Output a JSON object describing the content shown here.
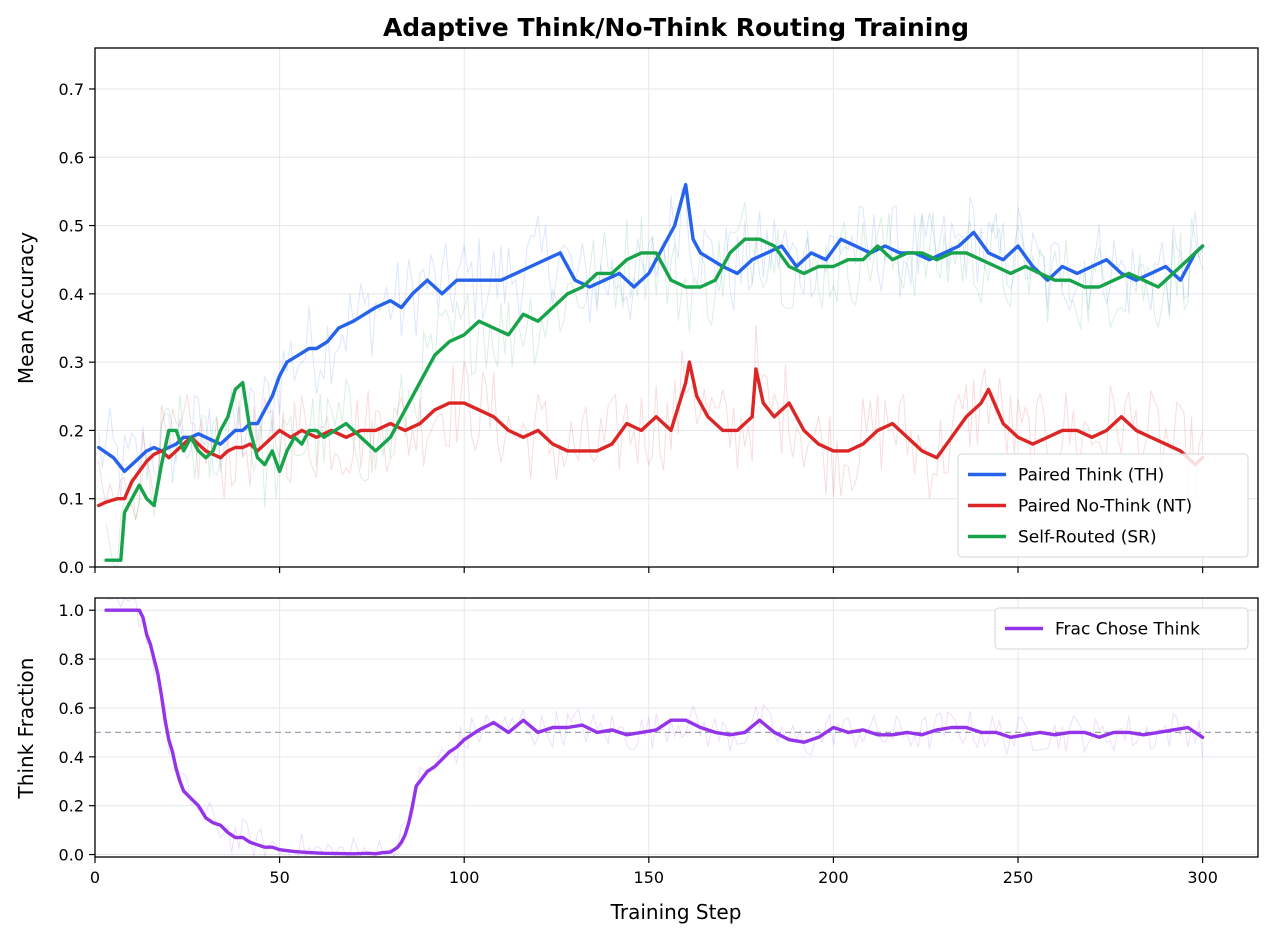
{
  "chart_data": [
    {
      "type": "line",
      "title": "Adaptive Think/No-Think Routing Training",
      "xlabel": "",
      "ylabel": "Mean Accuracy",
      "xlim": [
        0,
        315
      ],
      "ylim": [
        0,
        0.76
      ],
      "xticks": [
        0,
        50,
        100,
        150,
        200,
        250,
        300
      ],
      "yticks": [
        0.0,
        0.1,
        0.2,
        0.3,
        0.4,
        0.5,
        0.6,
        0.7
      ],
      "ytick_labels": [
        "0.0",
        "0.1",
        "0.2",
        "0.3",
        "0.4",
        "0.5",
        "0.6",
        "0.7"
      ],
      "grid": true,
      "legend": "lower-right",
      "series": [
        {
          "name": "Paired Think (TH)",
          "color": "#2563eb",
          "x": [
            1,
            5,
            8,
            10,
            12,
            14,
            16,
            18,
            20,
            22,
            24,
            26,
            28,
            30,
            32,
            34,
            36,
            38,
            40,
            42,
            44,
            46,
            48,
            50,
            52,
            55,
            58,
            60,
            63,
            66,
            70,
            73,
            76,
            80,
            83,
            86,
            88,
            90,
            92,
            94,
            96,
            98,
            100,
            103,
            106,
            110,
            114,
            118,
            122,
            126,
            130,
            134,
            138,
            142,
            146,
            150,
            154,
            157,
            160,
            162,
            164,
            167,
            170,
            174,
            178,
            182,
            186,
            190,
            194,
            198,
            202,
            206,
            210,
            214,
            218,
            222,
            226,
            230,
            234,
            238,
            242,
            246,
            250,
            254,
            258,
            262,
            266,
            270,
            274,
            278,
            282,
            286,
            290,
            294,
            298,
            300
          ],
          "y": [
            0.175,
            0.16,
            0.14,
            0.15,
            0.16,
            0.17,
            0.175,
            0.17,
            0.175,
            0.18,
            0.19,
            0.19,
            0.195,
            0.19,
            0.185,
            0.18,
            0.19,
            0.2,
            0.2,
            0.21,
            0.21,
            0.23,
            0.25,
            0.28,
            0.3,
            0.31,
            0.32,
            0.32,
            0.33,
            0.35,
            0.36,
            0.37,
            0.38,
            0.39,
            0.38,
            0.4,
            0.41,
            0.42,
            0.41,
            0.4,
            0.41,
            0.42,
            0.42,
            0.42,
            0.42,
            0.42,
            0.43,
            0.44,
            0.45,
            0.46,
            0.42,
            0.41,
            0.42,
            0.43,
            0.41,
            0.43,
            0.47,
            0.5,
            0.56,
            0.48,
            0.46,
            0.45,
            0.44,
            0.43,
            0.45,
            0.46,
            0.47,
            0.44,
            0.46,
            0.45,
            0.48,
            0.47,
            0.46,
            0.47,
            0.46,
            0.46,
            0.45,
            0.46,
            0.47,
            0.49,
            0.46,
            0.45,
            0.47,
            0.44,
            0.42,
            0.44,
            0.43,
            0.44,
            0.45,
            0.43,
            0.42,
            0.43,
            0.44,
            0.42,
            0.46,
            0.47
          ]
        },
        {
          "name": "Paired No-Think (NT)",
          "color": "#dc2626",
          "x": [
            1,
            3,
            6,
            8,
            10,
            12,
            14,
            16,
            18,
            20,
            22,
            24,
            26,
            28,
            30,
            32,
            34,
            36,
            38,
            40,
            42,
            44,
            46,
            48,
            50,
            53,
            56,
            60,
            64,
            68,
            72,
            76,
            80,
            84,
            88,
            92,
            96,
            100,
            104,
            108,
            112,
            116,
            120,
            124,
            128,
            132,
            136,
            140,
            144,
            148,
            152,
            156,
            160,
            161,
            163,
            166,
            170,
            174,
            178,
            179,
            181,
            184,
            188,
            192,
            196,
            200,
            204,
            208,
            212,
            216,
            220,
            224,
            228,
            232,
            236,
            240,
            242,
            246,
            250,
            254,
            258,
            262,
            266,
            270,
            274,
            278,
            282,
            286,
            290,
            294,
            298,
            300
          ],
          "y": [
            0.09,
            0.095,
            0.1,
            0.1,
            0.125,
            0.14,
            0.155,
            0.165,
            0.17,
            0.16,
            0.17,
            0.18,
            0.19,
            0.18,
            0.17,
            0.165,
            0.16,
            0.17,
            0.175,
            0.175,
            0.18,
            0.17,
            0.18,
            0.19,
            0.2,
            0.19,
            0.2,
            0.19,
            0.2,
            0.19,
            0.2,
            0.2,
            0.21,
            0.2,
            0.21,
            0.23,
            0.24,
            0.24,
            0.23,
            0.22,
            0.2,
            0.19,
            0.2,
            0.18,
            0.17,
            0.17,
            0.17,
            0.18,
            0.21,
            0.2,
            0.22,
            0.2,
            0.27,
            0.3,
            0.25,
            0.22,
            0.2,
            0.2,
            0.22,
            0.29,
            0.24,
            0.22,
            0.24,
            0.2,
            0.18,
            0.17,
            0.17,
            0.18,
            0.2,
            0.21,
            0.19,
            0.17,
            0.16,
            0.19,
            0.22,
            0.24,
            0.26,
            0.21,
            0.19,
            0.18,
            0.19,
            0.2,
            0.2,
            0.19,
            0.2,
            0.22,
            0.2,
            0.19,
            0.18,
            0.17,
            0.15,
            0.16
          ]
        },
        {
          "name": "Self-Routed (SR)",
          "color": "#16a34a",
          "x": [
            3,
            5,
            6,
            7,
            8,
            10,
            12,
            14,
            16,
            18,
            20,
            22,
            24,
            26,
            28,
            30,
            32,
            34,
            36,
            38,
            40,
            42,
            44,
            46,
            48,
            50,
            52,
            54,
            56,
            58,
            60,
            62,
            65,
            68,
            72,
            76,
            80,
            84,
            88,
            92,
            96,
            100,
            104,
            108,
            112,
            116,
            120,
            124,
            128,
            132,
            136,
            140,
            144,
            148,
            152,
            156,
            160,
            164,
            168,
            172,
            176,
            180,
            184,
            188,
            192,
            196,
            200,
            204,
            208,
            212,
            216,
            220,
            224,
            228,
            232,
            236,
            240,
            244,
            248,
            252,
            256,
            260,
            264,
            268,
            272,
            276,
            280,
            284,
            288,
            292,
            296,
            300
          ],
          "y": [
            0.01,
            0.01,
            0.01,
            0.01,
            0.08,
            0.1,
            0.12,
            0.1,
            0.09,
            0.15,
            0.2,
            0.2,
            0.17,
            0.19,
            0.17,
            0.16,
            0.17,
            0.2,
            0.22,
            0.26,
            0.27,
            0.2,
            0.16,
            0.15,
            0.17,
            0.14,
            0.17,
            0.19,
            0.18,
            0.2,
            0.2,
            0.19,
            0.2,
            0.21,
            0.19,
            0.17,
            0.19,
            0.23,
            0.27,
            0.31,
            0.33,
            0.34,
            0.36,
            0.35,
            0.34,
            0.37,
            0.36,
            0.38,
            0.4,
            0.41,
            0.43,
            0.43,
            0.45,
            0.46,
            0.46,
            0.42,
            0.41,
            0.41,
            0.42,
            0.46,
            0.48,
            0.48,
            0.47,
            0.44,
            0.43,
            0.44,
            0.44,
            0.45,
            0.45,
            0.47,
            0.45,
            0.46,
            0.46,
            0.45,
            0.46,
            0.46,
            0.45,
            0.44,
            0.43,
            0.44,
            0.43,
            0.42,
            0.42,
            0.41,
            0.41,
            0.42,
            0.43,
            0.42,
            0.41,
            0.43,
            0.45,
            0.47
          ]
        }
      ]
    },
    {
      "type": "line",
      "title": "",
      "xlabel": "Training Step",
      "ylabel": "Think Fraction",
      "xlim": [
        0,
        315
      ],
      "ylim": [
        -0.01,
        1.05
      ],
      "xticks": [
        0,
        50,
        100,
        150,
        200,
        250,
        300
      ],
      "yticks": [
        0.0,
        0.2,
        0.4,
        0.6,
        0.8,
        1.0
      ],
      "ytick_labels": [
        "0.0",
        "0.2",
        "0.4",
        "0.6",
        "0.8",
        "1.0"
      ],
      "grid": true,
      "legend": "top-right",
      "reference_line_y": 0.5,
      "series": [
        {
          "name": "Frac Chose Think",
          "color": "#9333ea",
          "x": [
            3,
            6,
            9,
            12,
            13,
            14,
            15,
            16,
            17,
            18,
            19,
            20,
            21,
            22,
            23,
            24,
            26,
            28,
            30,
            32,
            34,
            36,
            38,
            40,
            42,
            44,
            46,
            48,
            50,
            54,
            58,
            62,
            66,
            70,
            74,
            76,
            78,
            80,
            82,
            83,
            84,
            85,
            86,
            87,
            88,
            90,
            92,
            94,
            96,
            98,
            100,
            104,
            108,
            112,
            116,
            120,
            124,
            128,
            132,
            136,
            140,
            144,
            148,
            152,
            156,
            160,
            164,
            168,
            172,
            176,
            180,
            184,
            188,
            192,
            196,
            200,
            204,
            208,
            212,
            216,
            220,
            224,
            228,
            232,
            236,
            240,
            244,
            248,
            252,
            256,
            260,
            264,
            268,
            272,
            276,
            280,
            284,
            288,
            292,
            296,
            300
          ],
          "y": [
            1.0,
            1.0,
            1.0,
            1.0,
            0.97,
            0.9,
            0.86,
            0.8,
            0.74,
            0.65,
            0.55,
            0.47,
            0.42,
            0.35,
            0.3,
            0.26,
            0.23,
            0.2,
            0.15,
            0.13,
            0.12,
            0.09,
            0.07,
            0.07,
            0.05,
            0.04,
            0.03,
            0.03,
            0.02,
            0.012,
            0.008,
            0.005,
            0.004,
            0.003,
            0.005,
            0.003,
            0.008,
            0.01,
            0.03,
            0.05,
            0.08,
            0.13,
            0.2,
            0.28,
            0.3,
            0.34,
            0.36,
            0.39,
            0.42,
            0.44,
            0.47,
            0.51,
            0.54,
            0.5,
            0.55,
            0.5,
            0.52,
            0.52,
            0.53,
            0.5,
            0.51,
            0.49,
            0.5,
            0.51,
            0.55,
            0.55,
            0.52,
            0.5,
            0.49,
            0.5,
            0.55,
            0.5,
            0.47,
            0.46,
            0.48,
            0.52,
            0.5,
            0.51,
            0.49,
            0.49,
            0.5,
            0.49,
            0.51,
            0.52,
            0.52,
            0.5,
            0.5,
            0.48,
            0.49,
            0.5,
            0.49,
            0.5,
            0.5,
            0.48,
            0.5,
            0.5,
            0.49,
            0.5,
            0.51,
            0.52,
            0.48
          ]
        }
      ]
    }
  ]
}
